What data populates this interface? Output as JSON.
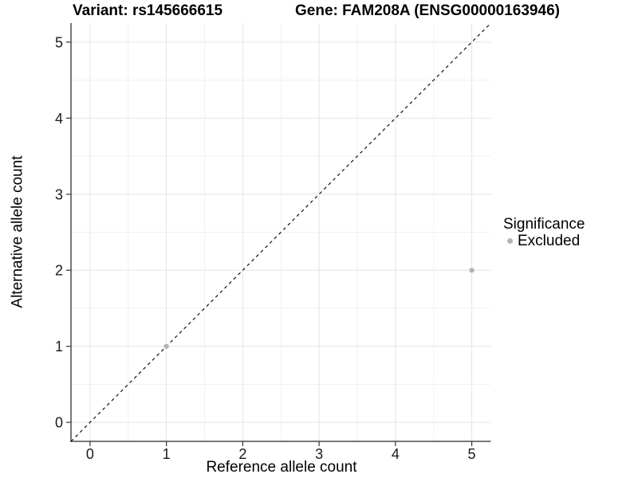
{
  "header": {
    "variant_title": "Variant: rs145666615",
    "gene_title": "Gene: FAM208A (ENSG00000163946)"
  },
  "axes": {
    "x": {
      "title": "Reference allele count",
      "tick_labels": [
        "0",
        "1",
        "2",
        "3",
        "4",
        "5"
      ]
    },
    "y": {
      "title": "Alternative allele count",
      "tick_labels": [
        "0",
        "1",
        "2",
        "3",
        "4",
        "5"
      ]
    }
  },
  "legend": {
    "title": "Significance",
    "items": [
      {
        "label": "Excluded",
        "color": "#b4b4b4"
      }
    ]
  },
  "chart_data": {
    "type": "scatter",
    "title": "Variant: rs145666615 — Gene: FAM208A (ENSG00000163946)",
    "xlabel": "Reference allele count",
    "ylabel": "Alternative allele count",
    "xlim": [
      -0.25,
      5.25
    ],
    "ylim": [
      -0.25,
      5.25
    ],
    "x_ticks": [
      0,
      1,
      2,
      3,
      4,
      5
    ],
    "y_ticks": [
      0,
      1,
      2,
      3,
      4,
      5
    ],
    "grid": "major+minor",
    "legend_title": "Significance",
    "legend_position": "right",
    "series": [
      {
        "name": "Excluded",
        "color": "#b4b4b4",
        "points": [
          {
            "x": 1,
            "y": 1
          },
          {
            "x": 5,
            "y": 2
          }
        ]
      }
    ],
    "reference_line": {
      "type": "identity y=x",
      "style": "dashed",
      "color": "#111111"
    }
  },
  "style": {
    "background": "#ffffff",
    "grid_major_color": "#e4e4e4",
    "grid_minor_color": "#f1f1f1",
    "axis_line_color": "#4a4a4a",
    "tick_mark_color": "#333333",
    "tick_label_color": "#1a1a1a",
    "point_color": "#b4b4b4",
    "point_radius": 3.2
  }
}
